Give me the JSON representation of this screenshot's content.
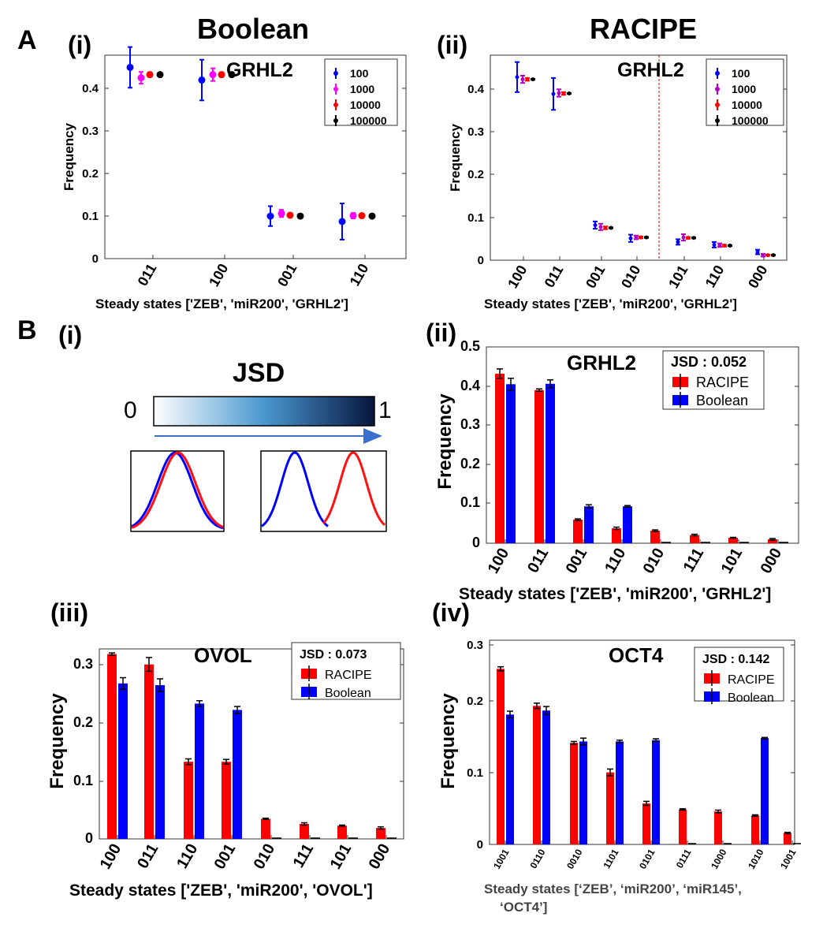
{
  "colors": {
    "red": "#ff0000",
    "blue": "#0000ff",
    "magenta": "#ff00ff",
    "black": "#000000",
    "purple": "#b000c0",
    "divider": "#d40000"
  },
  "panel_labels": {
    "A": "A",
    "B": "B",
    "a_i": "(i)",
    "a_ii": "(ii)",
    "b_i": "(i)",
    "b_ii": "(ii)",
    "b_iii": "(iii)",
    "b_iv": "(iv)"
  },
  "titles": {
    "boolean": "Boolean",
    "racipe": "RACIPE"
  },
  "jsd_schematic": {
    "title": "JSD",
    "min": "0",
    "max": "1",
    "colormap": "white-to-navy"
  },
  "chart_data": [
    {
      "id": "A_i",
      "type": "scatter",
      "title": "GRHL2",
      "xlabel": "Steady states ['ZEB', 'miR200', 'GRHL2']",
      "ylabel": "Frequency",
      "categories": [
        "011",
        "100",
        "001",
        "110"
      ],
      "ylim": [
        0,
        0.45
      ],
      "yticks": [
        "0",
        "0.1",
        "0.2",
        "0.3",
        "0.4"
      ],
      "legend_position": "top-right",
      "series": [
        {
          "name": "100",
          "color": "blue",
          "values": [
            0.423,
            0.395,
            0.094,
            0.082
          ],
          "errors": [
            0.045,
            0.045,
            0.022,
            0.04
          ]
        },
        {
          "name": "1000",
          "color": "magenta",
          "values": [
            0.4,
            0.407,
            0.1,
            0.095
          ],
          "errors": [
            0.013,
            0.014,
            0.008,
            0.006
          ]
        },
        {
          "name": "10000",
          "color": "red",
          "values": [
            0.407,
            0.407,
            0.096,
            0.095
          ],
          "errors": [
            0.005,
            0.005,
            0.003,
            0.002
          ]
        },
        {
          "name": "100000",
          "color": "black",
          "values": [
            0.407,
            0.407,
            0.094,
            0.094
          ],
          "errors": [
            0.002,
            0.002,
            0.001,
            0.001
          ]
        }
      ]
    },
    {
      "id": "A_ii",
      "type": "scatter",
      "title": "GRHL2",
      "xlabel": "Steady states ['ZEB', 'miR200', 'GRHL2']",
      "ylabel": "Frequency",
      "categories": [
        "100",
        "011",
        "001",
        "010",
        "101",
        "110",
        "000"
      ],
      "ylim": [
        0,
        0.45
      ],
      "yticks": [
        "0",
        "0.1",
        "0.2",
        "0.3",
        "0.4"
      ],
      "divider_after": "010",
      "legend_position": "top-right",
      "series": [
        {
          "name": "100",
          "color": "blue",
          "values": [
            0.402,
            0.365,
            0.077,
            0.048,
            0.04,
            0.034,
            0.018
          ],
          "errors": [
            0.033,
            0.035,
            0.008,
            0.008,
            0.006,
            0.006,
            0.005
          ]
        },
        {
          "name": "1000",
          "color": "purple",
          "values": [
            0.397,
            0.367,
            0.073,
            0.05,
            0.05,
            0.033,
            0.011
          ],
          "errors": [
            0.008,
            0.008,
            0.007,
            0.004,
            0.007,
            0.004,
            0.003
          ]
        },
        {
          "name": "10000",
          "color": "red",
          "values": [
            0.397,
            0.366,
            0.071,
            0.05,
            0.049,
            0.032,
            0.011
          ],
          "errors": [
            0.003,
            0.003,
            0.003,
            0.002,
            0.002,
            0.002,
            0.001
          ]
        },
        {
          "name": "100000",
          "color": "black",
          "values": [
            0.397,
            0.366,
            0.071,
            0.05,
            0.049,
            0.032,
            0.011
          ],
          "errors": [
            0.001,
            0.001,
            0.001,
            0.001,
            0.001,
            0.001,
            0.001
          ]
        }
      ]
    },
    {
      "id": "B_ii",
      "type": "bar",
      "title": "GRHL2",
      "jsd": "JSD : 0.052",
      "xlabel": "Steady states ['ZEB', 'miR200', 'GRHL2']",
      "ylabel": "Frequency",
      "categories": [
        "100",
        "011",
        "001",
        "110",
        "010",
        "111",
        "101",
        "000"
      ],
      "ylim": [
        0,
        0.5
      ],
      "yticks": [
        "0",
        "0.1",
        "0.2",
        "0.3",
        "0.4",
        "0.5"
      ],
      "legend_position": "top-right",
      "series": [
        {
          "name": "RACIPE",
          "color": "red",
          "values": [
            0.432,
            0.39,
            0.06,
            0.038,
            0.032,
            0.021,
            0.014,
            0.01
          ],
          "errors": [
            0.012,
            0.003,
            0.002,
            0.003,
            0.002,
            0.002,
            0.001,
            0.002
          ]
        },
        {
          "name": "Boolean",
          "color": "blue",
          "values": [
            0.405,
            0.406,
            0.094,
            0.094,
            0.0,
            0.0,
            0.0,
            0.0
          ],
          "errors": [
            0.015,
            0.01,
            0.004,
            0.002,
            0,
            0,
            0,
            0
          ]
        }
      ]
    },
    {
      "id": "B_iii",
      "type": "bar",
      "title": "OVOL",
      "jsd": "JSD : 0.073",
      "xlabel": "Steady states ['ZEB', 'miR200', 'OVOL']",
      "ylabel": "Frequency",
      "categories": [
        "100",
        "011",
        "110",
        "001",
        "010",
        "111",
        "101",
        "000"
      ],
      "ylim": [
        0,
        0.33
      ],
      "yticks": [
        "0",
        "0.1",
        "0.2",
        "0.3"
      ],
      "legend_position": "top-right",
      "series": [
        {
          "name": "RACIPE",
          "color": "red",
          "values": [
            0.321,
            0.303,
            0.134,
            0.134,
            0.035,
            0.026,
            0.023,
            0.019
          ],
          "errors": [
            0.002,
            0.012,
            0.005,
            0.004,
            0.001,
            0.002,
            0.001,
            0.002
          ]
        },
        {
          "name": "Boolean",
          "color": "blue",
          "values": [
            0.27,
            0.267,
            0.235,
            0.224,
            0.0,
            0.0,
            0.0,
            0.0
          ],
          "errors": [
            0.01,
            0.011,
            0.005,
            0.006,
            0,
            0,
            0,
            0
          ]
        }
      ]
    },
    {
      "id": "B_iv",
      "type": "bar",
      "title": "OCT4",
      "jsd": "JSD : 0.142",
      "xlabel_line1": "Steady states [‘ZEB’, ‘miR200’, ‘miR145’,",
      "xlabel_line2": "‘OCT4’]",
      "ylabel": "Frequency",
      "categories": [
        "1001",
        "0110",
        "0010",
        "1101",
        "0101",
        "0111",
        "1000",
        "1010",
        "1001"
      ],
      "ylim": [
        0,
        0.3
      ],
      "yticks": [
        "0",
        "0.1",
        "0.2",
        "0.3"
      ],
      "legend_position": "top-right",
      "series": [
        {
          "name": "RACIPE",
          "color": "red",
          "values": [
            0.261,
            0.206,
            0.151,
            0.107,
            0.061,
            0.052,
            0.049,
            0.043,
            0.017
          ],
          "errors": [
            0.003,
            0.004,
            0.002,
            0.005,
            0.003,
            0.001,
            0.002,
            0.001,
            0.001
          ]
        },
        {
          "name": "Boolean",
          "color": "blue",
          "values": [
            0.193,
            0.199,
            0.153,
            0.153,
            0.155,
            0.0,
            0.0,
            0.158,
            0.0
          ],
          "errors": [
            0.005,
            0.006,
            0.005,
            0.002,
            0.002,
            0,
            0,
            0.001,
            0
          ]
        }
      ]
    }
  ]
}
